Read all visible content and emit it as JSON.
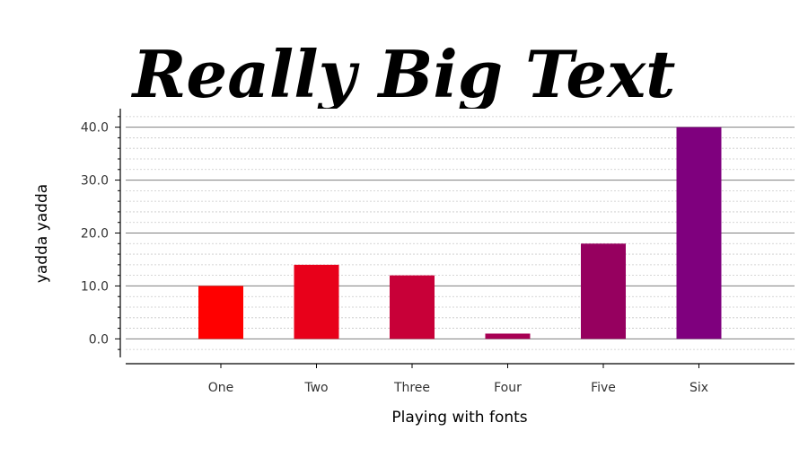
{
  "chart_data": {
    "type": "bar",
    "title": "Really Big Text",
    "xlabel": "Playing with fonts",
    "ylabel": "yadda yadda",
    "categories": [
      "One",
      "Two",
      "Three",
      "Four",
      "Five",
      "Six"
    ],
    "values": [
      10,
      14,
      12,
      1,
      18,
      40
    ],
    "ylim": [
      -3.5,
      43.5
    ],
    "yticks": [
      "0.0",
      "10.0",
      "20.0",
      "30.0",
      "40.0"
    ],
    "bar_colors": [
      "#ff0000",
      "#e8001a",
      "#c80038",
      "#a80054",
      "#96005f",
      "#7f007e"
    ],
    "grid": true,
    "legend": "none"
  }
}
